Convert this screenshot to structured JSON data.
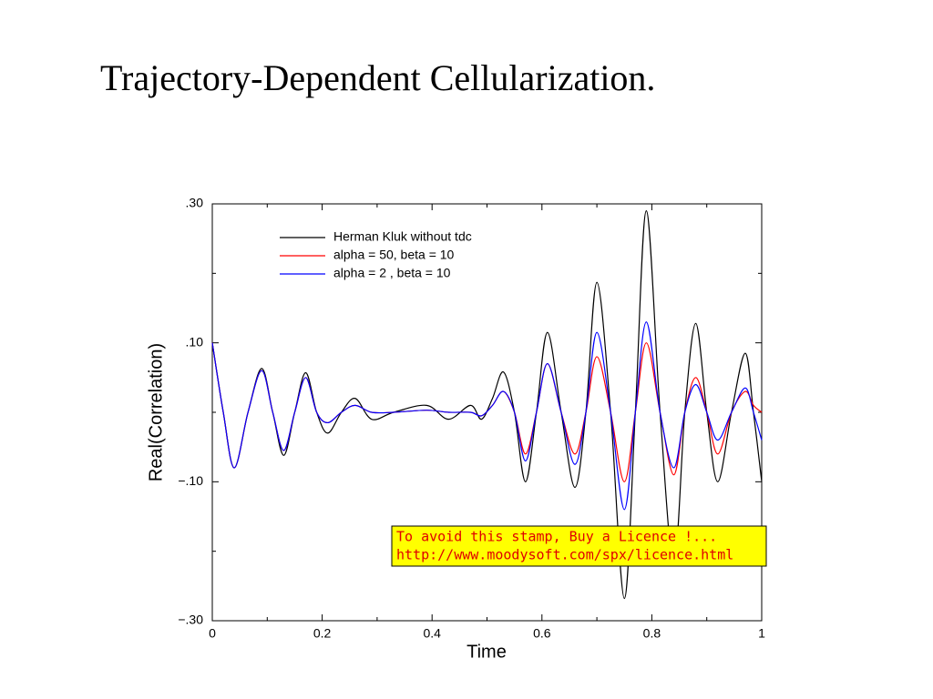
{
  "chart_data": {
    "type": "line",
    "title": "Trajectory-Dependent Cellularization.",
    "xlabel": "Time",
    "ylabel": "Real(Correlation)",
    "x": [
      0,
      0.02,
      0.04,
      0.065,
      0.09,
      0.11,
      0.13,
      0.15,
      0.17,
      0.19,
      0.21,
      0.235,
      0.26,
      0.29,
      0.33,
      0.39,
      0.43,
      0.47,
      0.49,
      0.51,
      0.53,
      0.55,
      0.57,
      0.59,
      0.61,
      0.635,
      0.66,
      0.68,
      0.7,
      0.725,
      0.75,
      0.77,
      0.79,
      0.815,
      0.84,
      0.86,
      0.88,
      0.9,
      0.92,
      0.945,
      0.97,
      0.985,
      1.0
    ],
    "series": [
      {
        "name": "Herman Kluk without tdc",
        "color": "#000000",
        "values": [
          0.1,
          0.0,
          -0.08,
          0.0,
          0.063,
          0.0,
          -0.062,
          0.0,
          0.057,
          0.0,
          -0.03,
          0.0,
          0.02,
          -0.01,
          0.0,
          0.01,
          -0.01,
          0.01,
          -0.01,
          0.02,
          0.058,
          0.0,
          -0.1,
          0.0,
          0.115,
          0.0,
          -0.108,
          0.0,
          0.187,
          0.0,
          -0.268,
          0.0,
          0.29,
          0.0,
          -0.22,
          0.0,
          0.128,
          0.0,
          -0.1,
          0.0,
          0.085,
          0.0,
          -0.1
        ]
      },
      {
        "name": "alpha = 50, beta = 10",
        "color": "#ff0000",
        "values": [
          0.1,
          0.0,
          -0.08,
          0.0,
          0.06,
          0.0,
          -0.055,
          0.0,
          0.05,
          0.0,
          -0.015,
          0.0,
          0.01,
          0.0,
          0.0,
          0.003,
          0.0,
          0.0,
          -0.005,
          0.01,
          0.03,
          0.0,
          -0.06,
          0.0,
          0.07,
          0.0,
          -0.06,
          0.0,
          0.08,
          0.0,
          -0.1,
          0.0,
          0.1,
          0.0,
          -0.09,
          0.0,
          0.05,
          0.0,
          -0.06,
          0.0,
          0.03,
          0.01,
          0.0
        ]
      },
      {
        "name": "alpha = 2 , beta = 10",
        "color": "#0000ff",
        "values": [
          0.1,
          0.0,
          -0.08,
          0.0,
          0.06,
          0.0,
          -0.055,
          0.0,
          0.05,
          0.0,
          -0.015,
          0.0,
          0.01,
          0.0,
          0.0,
          0.003,
          0.0,
          0.0,
          -0.005,
          0.01,
          0.03,
          0.0,
          -0.07,
          0.0,
          0.07,
          0.0,
          -0.075,
          0.0,
          0.115,
          0.0,
          -0.14,
          0.0,
          0.13,
          0.0,
          -0.08,
          0.0,
          0.04,
          0.0,
          -0.04,
          0.0,
          0.035,
          0.0,
          -0.04
        ]
      }
    ],
    "xlim": [
      0,
      1
    ],
    "xticks": [
      0,
      0.2,
      0.4,
      0.6,
      0.8,
      1
    ],
    "xminor": [
      0.1,
      0.3,
      0.5,
      0.7,
      0.9
    ],
    "ylim": [
      -0.3,
      0.3
    ],
    "yticks": [
      {
        "value": -0.3,
        "label": "−.30"
      },
      {
        "value": -0.1,
        "label": "−.10"
      },
      {
        "value": 0.1,
        "label": ".10"
      },
      {
        "value": 0.3,
        "label": ".30"
      }
    ],
    "yminor": [
      -0.2,
      0,
      0.2
    ],
    "grid": false,
    "legend": "upper left",
    "stamp": [
      "To avoid this stamp, Buy a Licence !...",
      "http://www.moodysoft.com/spx/licence.html"
    ]
  }
}
